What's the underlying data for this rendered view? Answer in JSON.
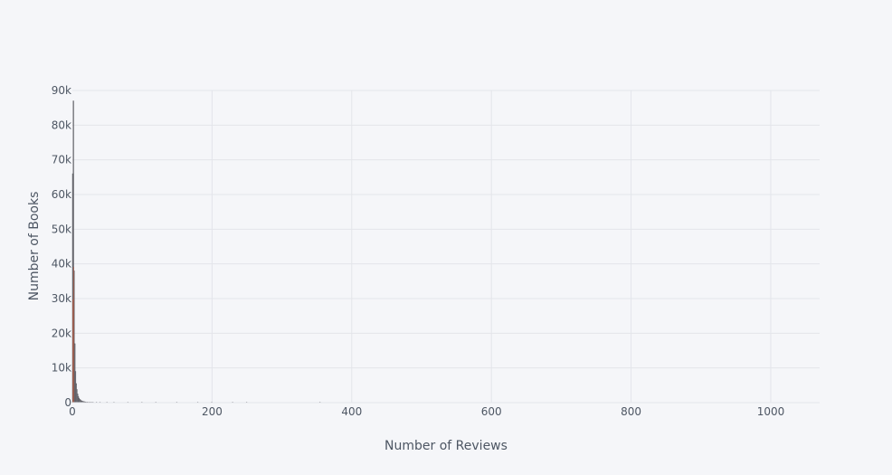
{
  "chart_data": {
    "type": "bar",
    "title": "",
    "xlabel": "Number of Reviews",
    "ylabel": "Number of Books",
    "xlim": [
      0,
      1070
    ],
    "ylim": [
      0,
      90000
    ],
    "x_ticks": [
      0,
      200,
      400,
      600,
      800,
      1000
    ],
    "x_tick_labels": [
      "0",
      "200",
      "400",
      "600",
      "800",
      "1000"
    ],
    "y_ticks": [
      0,
      10000,
      20000,
      30000,
      40000,
      50000,
      60000,
      70000,
      80000,
      90000
    ],
    "y_tick_labels": [
      "0",
      "10k",
      "20k",
      "30k",
      "40k",
      "50k",
      "60k",
      "70k",
      "80k",
      "90k"
    ],
    "grid": true,
    "bar_color": "#7f7f86",
    "bar_edge_color": "#56565c",
    "highlight_color": "#b5563f",
    "x": [
      1,
      2,
      3,
      4,
      5,
      6,
      7,
      8,
      9,
      10,
      11,
      12,
      13,
      14,
      15,
      16,
      17,
      18,
      19,
      20,
      22,
      24,
      26,
      28,
      30,
      35,
      40,
      50,
      60,
      80,
      100,
      120,
      150,
      180,
      200,
      230,
      250,
      355
    ],
    "values": [
      66000,
      87000,
      38000,
      17000,
      9000,
      5500,
      3800,
      2500,
      1800,
      1300,
      1000,
      800,
      600,
      500,
      400,
      350,
      300,
      250,
      220,
      200,
      180,
      150,
      130,
      110,
      100,
      80,
      60,
      45,
      35,
      25,
      20,
      15,
      12,
      10,
      8,
      6,
      5,
      3
    ]
  }
}
